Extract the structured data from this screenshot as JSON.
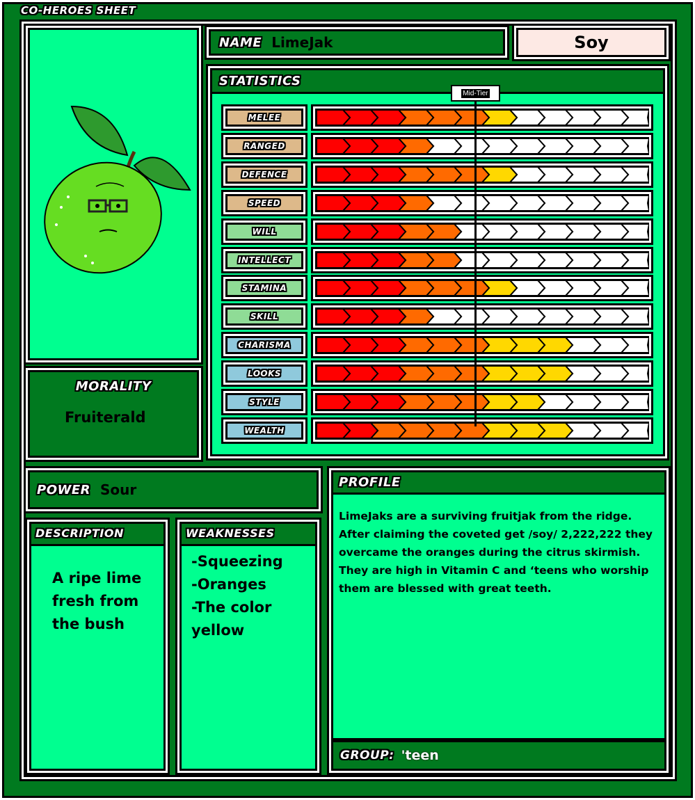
{
  "sheet_title": "CO-HEROES SHEET",
  "name_label": "NAME",
  "name": "LimeJak",
  "board": "Soy",
  "statistics_label": "STATISTICS",
  "mid_tier_label": "Mid-Tier",
  "segments_total": 12,
  "segment_colors": {
    "red": "#ff0000",
    "orange": "#ff6a00",
    "yellow": "#ffd800",
    "empty": "#ffffff"
  },
  "stats": [
    {
      "label": "MELEE",
      "value": 7,
      "group_color": "#ddb98a"
    },
    {
      "label": "RANGED",
      "value": 4,
      "group_color": "#ddb98a"
    },
    {
      "label": "DEFENCE",
      "value": 7,
      "group_color": "#ddb98a"
    },
    {
      "label": "SPEED",
      "value": 4,
      "group_color": "#ddb98a"
    },
    {
      "label": "WILL",
      "value": 5,
      "group_color": "#8fdc96"
    },
    {
      "label": "INTELLECT",
      "value": 5,
      "group_color": "#8fdc96"
    },
    {
      "label": "STAMINA",
      "value": 7,
      "group_color": "#8fdc96"
    },
    {
      "label": "SKILL",
      "value": 4,
      "group_color": "#8fdc96"
    },
    {
      "label": "CHARISMA",
      "value": 9,
      "group_color": "#8fc9dc"
    },
    {
      "label": "LOOKS",
      "value": 9,
      "group_color": "#8fc9dc"
    },
    {
      "label": "STYLE",
      "value": 8,
      "group_color": "#8fc9dc"
    },
    {
      "label": "WEALTH",
      "value": 9,
      "group_color": "#8fc9dc",
      "red_count": 2
    }
  ],
  "morality_label": "MORALITY",
  "morality": "Fruiterald",
  "power_label": "POWER",
  "power": "Sour",
  "description_label": "DESCRIPTION",
  "description": "A ripe lime fresh from the bush",
  "weaknesses_label": "WEAKNESSES",
  "weaknesses": [
    "-Squeezing",
    "-Oranges",
    "-The color yellow"
  ],
  "profile_label": "PROFILE",
  "profile": "LimeJaks are a surviving fruitjak from the ridge. After claiming the coveted get /soy/ 2,222,222 they overcame the oranges during the citrus skirmish. They are high in Vitamin C and ‘teens who worship them are blessed with great teeth.",
  "group_label": "GROUP:",
  "group": "'teen"
}
